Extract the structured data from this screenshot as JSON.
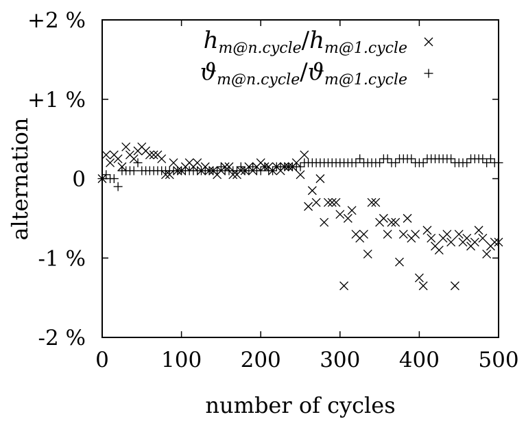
{
  "chart_data": {
    "type": "scatter",
    "xlabel": "number of cycles",
    "ylabel": "alternation",
    "xlim": [
      0,
      500
    ],
    "ylim": [
      -2,
      2
    ],
    "x_ticks": [
      0,
      100,
      200,
      300,
      400,
      500
    ],
    "x_tick_labels": [
      "0",
      "100",
      "200",
      "300",
      "400",
      "500"
    ],
    "y_ticks": [
      2,
      1,
      0,
      -1,
      -2
    ],
    "y_tick_labels": [
      "+2 %",
      "+1 %",
      "0",
      "-1 %",
      "-2 %"
    ],
    "grid": false,
    "legend_position": "top-right",
    "series": [
      {
        "name": "h_{m@n.cycle}/h_{m@1.cycle}",
        "legend": {
          "sym1": "h",
          "sub1": "m@n.cycle",
          "sep": "/",
          "sym2": "h",
          "sub2": "m@1.cycle"
        },
        "marker": "cross",
        "color": "#000000",
        "points": [
          [
            0,
            0.0
          ],
          [
            5,
            0.3
          ],
          [
            10,
            0.2
          ],
          [
            15,
            0.3
          ],
          [
            20,
            0.25
          ],
          [
            25,
            0.15
          ],
          [
            30,
            0.4
          ],
          [
            35,
            0.3
          ],
          [
            40,
            0.25
          ],
          [
            45,
            0.35
          ],
          [
            50,
            0.4
          ],
          [
            55,
            0.35
          ],
          [
            60,
            0.3
          ],
          [
            65,
            0.3
          ],
          [
            70,
            0.3
          ],
          [
            75,
            0.25
          ],
          [
            80,
            0.05
          ],
          [
            85,
            0.05
          ],
          [
            90,
            0.2
          ],
          [
            95,
            0.1
          ],
          [
            100,
            0.1
          ],
          [
            105,
            0.15
          ],
          [
            110,
            0.2
          ],
          [
            115,
            0.15
          ],
          [
            120,
            0.2
          ],
          [
            125,
            0.1
          ],
          [
            130,
            0.15
          ],
          [
            135,
            0.1
          ],
          [
            140,
            0.1
          ],
          [
            145,
            0.05
          ],
          [
            150,
            0.1
          ],
          [
            155,
            0.15
          ],
          [
            160,
            0.15
          ],
          [
            165,
            0.05
          ],
          [
            170,
            0.05
          ],
          [
            175,
            0.1
          ],
          [
            180,
            0.1
          ],
          [
            185,
            0.15
          ],
          [
            190,
            0.1
          ],
          [
            195,
            0.15
          ],
          [
            200,
            0.2
          ],
          [
            205,
            0.15
          ],
          [
            210,
            0.15
          ],
          [
            215,
            0.1
          ],
          [
            220,
            0.15
          ],
          [
            225,
            0.1
          ],
          [
            230,
            0.15
          ],
          [
            235,
            0.15
          ],
          [
            240,
            0.15
          ],
          [
            245,
            0.2
          ],
          [
            250,
            0.05
          ],
          [
            255,
            0.3
          ],
          [
            260,
            -0.35
          ],
          [
            265,
            -0.15
          ],
          [
            270,
            -0.3
          ],
          [
            275,
            0.0
          ],
          [
            280,
            -0.55
          ],
          [
            285,
            -0.3
          ],
          [
            290,
            -0.3
          ],
          [
            295,
            -0.3
          ],
          [
            300,
            -0.45
          ],
          [
            305,
            -1.35
          ],
          [
            310,
            -0.5
          ],
          [
            315,
            -0.4
          ],
          [
            320,
            -0.7
          ],
          [
            325,
            -0.75
          ],
          [
            330,
            -0.7
          ],
          [
            335,
            -0.95
          ],
          [
            340,
            -0.3
          ],
          [
            345,
            -0.3
          ],
          [
            350,
            -0.55
          ],
          [
            355,
            -0.5
          ],
          [
            360,
            -0.7
          ],
          [
            365,
            -0.55
          ],
          [
            370,
            -0.55
          ],
          [
            375,
            -1.05
          ],
          [
            380,
            -0.7
          ],
          [
            385,
            -0.5
          ],
          [
            390,
            -0.75
          ],
          [
            395,
            -0.7
          ],
          [
            400,
            -1.25
          ],
          [
            405,
            -1.35
          ],
          [
            410,
            -0.65
          ],
          [
            415,
            -0.75
          ],
          [
            420,
            -0.85
          ],
          [
            425,
            -0.9
          ],
          [
            430,
            -0.75
          ],
          [
            435,
            -0.7
          ],
          [
            440,
            -0.8
          ],
          [
            445,
            -1.35
          ],
          [
            450,
            -0.7
          ],
          [
            455,
            -0.8
          ],
          [
            460,
            -0.75
          ],
          [
            465,
            -0.85
          ],
          [
            470,
            -0.8
          ],
          [
            475,
            -0.65
          ],
          [
            480,
            -0.75
          ],
          [
            485,
            -0.95
          ],
          [
            490,
            -0.85
          ],
          [
            495,
            -0.8
          ],
          [
            500,
            -0.8
          ]
        ]
      },
      {
        "name": "θ_{m@n.cycle}/θ_{m@1.cycle}",
        "legend": {
          "sym1": "ϑ",
          "sub1": "m@n.cycle",
          "sep": "/",
          "sym2": "ϑ",
          "sub2": "m@1.cycle"
        },
        "marker": "plus",
        "color": "#000000",
        "points": [
          [
            0,
            0.0
          ],
          [
            5,
            0.05
          ],
          [
            10,
            0.0
          ],
          [
            15,
            0.0
          ],
          [
            20,
            -0.1
          ],
          [
            25,
            0.1
          ],
          [
            30,
            0.1
          ],
          [
            35,
            0.1
          ],
          [
            40,
            0.1
          ],
          [
            45,
            0.2
          ],
          [
            50,
            0.1
          ],
          [
            55,
            0.1
          ],
          [
            60,
            0.1
          ],
          [
            65,
            0.1
          ],
          [
            70,
            0.1
          ],
          [
            75,
            0.1
          ],
          [
            80,
            0.1
          ],
          [
            85,
            0.1
          ],
          [
            90,
            0.1
          ],
          [
            95,
            0.1
          ],
          [
            100,
            0.1
          ],
          [
            105,
            0.1
          ],
          [
            110,
            0.1
          ],
          [
            115,
            0.1
          ],
          [
            120,
            0.1
          ],
          [
            125,
            0.1
          ],
          [
            130,
            0.1
          ],
          [
            135,
            0.1
          ],
          [
            140,
            0.1
          ],
          [
            145,
            0.1
          ],
          [
            150,
            0.15
          ],
          [
            155,
            0.1
          ],
          [
            160,
            0.1
          ],
          [
            165,
            0.1
          ],
          [
            170,
            0.1
          ],
          [
            175,
            0.15
          ],
          [
            180,
            0.1
          ],
          [
            185,
            0.1
          ],
          [
            190,
            0.15
          ],
          [
            195,
            0.1
          ],
          [
            200,
            0.1
          ],
          [
            205,
            0.15
          ],
          [
            210,
            0.1
          ],
          [
            215,
            0.1
          ],
          [
            220,
            0.15
          ],
          [
            225,
            0.15
          ],
          [
            230,
            0.15
          ],
          [
            235,
            0.15
          ],
          [
            240,
            0.15
          ],
          [
            245,
            0.15
          ],
          [
            250,
            0.15
          ],
          [
            255,
            0.2
          ],
          [
            260,
            0.2
          ],
          [
            265,
            0.2
          ],
          [
            270,
            0.2
          ],
          [
            275,
            0.2
          ],
          [
            280,
            0.2
          ],
          [
            285,
            0.2
          ],
          [
            290,
            0.2
          ],
          [
            295,
            0.2
          ],
          [
            300,
            0.2
          ],
          [
            305,
            0.2
          ],
          [
            310,
            0.2
          ],
          [
            315,
            0.2
          ],
          [
            320,
            0.2
          ],
          [
            325,
            0.25
          ],
          [
            330,
            0.2
          ],
          [
            335,
            0.2
          ],
          [
            340,
            0.2
          ],
          [
            345,
            0.2
          ],
          [
            350,
            0.2
          ],
          [
            355,
            0.25
          ],
          [
            360,
            0.25
          ],
          [
            365,
            0.2
          ],
          [
            370,
            0.2
          ],
          [
            375,
            0.25
          ],
          [
            380,
            0.25
          ],
          [
            385,
            0.25
          ],
          [
            390,
            0.25
          ],
          [
            395,
            0.2
          ],
          [
            400,
            0.2
          ],
          [
            405,
            0.2
          ],
          [
            410,
            0.25
          ],
          [
            415,
            0.25
          ],
          [
            420,
            0.25
          ],
          [
            425,
            0.25
          ],
          [
            430,
            0.25
          ],
          [
            435,
            0.25
          ],
          [
            440,
            0.25
          ],
          [
            445,
            0.2
          ],
          [
            450,
            0.2
          ],
          [
            455,
            0.2
          ],
          [
            460,
            0.2
          ],
          [
            465,
            0.25
          ],
          [
            470,
            0.25
          ],
          [
            475,
            0.25
          ],
          [
            480,
            0.25
          ],
          [
            485,
            0.2
          ],
          [
            490,
            0.25
          ],
          [
            495,
            0.2
          ],
          [
            500,
            0.2
          ]
        ]
      }
    ]
  }
}
